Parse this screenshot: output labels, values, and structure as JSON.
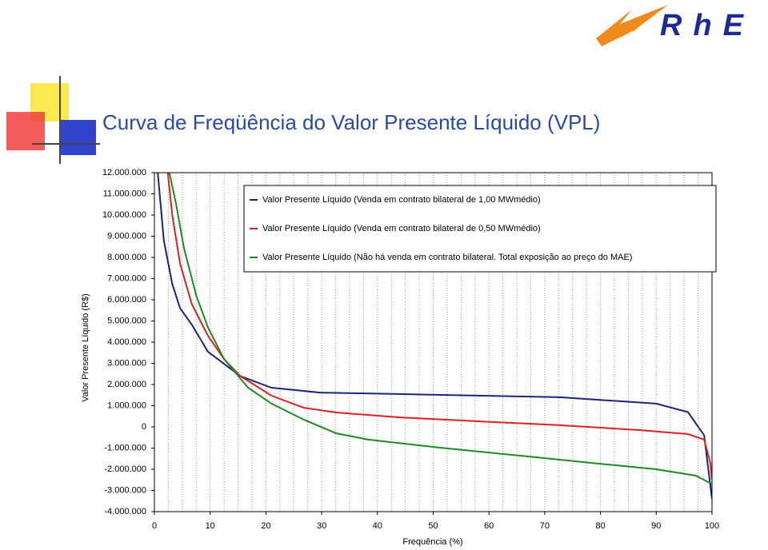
{
  "logo": "RhE",
  "chart_data": {
    "type": "line",
    "title": "Curva de Freqüência do Valor Presente Líquido (VPL)",
    "x_label": "Frequência (%)",
    "y_label": "Valor Presente Líquido (R$)",
    "xlim": [
      0,
      100
    ],
    "xticks": [
      0,
      10,
      20,
      30,
      40,
      50,
      60,
      70,
      80,
      90,
      100
    ],
    "ylim": [
      -4000000,
      12000000
    ],
    "yticks": [
      {
        "value": -4000000,
        "label": "-4.000.000"
      },
      {
        "value": -3000000,
        "label": "-3.000.000"
      },
      {
        "value": -2000000,
        "label": "-2.000.000"
      },
      {
        "value": -1000000,
        "label": "-1.000.000"
      },
      0,
      {
        "value": 1000000,
        "label": "1.000.000"
      },
      {
        "value": 2000000,
        "label": "2.000.000"
      },
      {
        "value": 3000000,
        "label": "3.000.000"
      },
      {
        "value": 4000000,
        "label": "4.000.000"
      },
      {
        "value": 5000000,
        "label": "5.000.000"
      },
      {
        "value": 6000000,
        "label": "6.000.000"
      },
      {
        "value": 7000000,
        "label": "7.000.000"
      },
      {
        "value": 8000000,
        "label": "8.000.000"
      },
      {
        "value": 9000000,
        "label": "9.000.000"
      },
      {
        "value": 10000000,
        "label": "10.000.000"
      },
      {
        "value": 11000000,
        "label": "11.000.000"
      },
      {
        "value": 12000000,
        "label": "12.000.000"
      }
    ],
    "grid": true,
    "series": [
      {
        "name": "Valor Presente Líquido (Venda em contrato bilateral de 1,00 MWmédio)",
        "color": "#1a237e",
        "x": [
          0.6,
          1.7,
          3.2,
          4.6,
          6.7,
          9.6,
          15.4,
          21,
          29.7,
          44,
          72.7,
          90,
          95.7,
          98.6,
          100
        ],
        "values": [
          12000000,
          8800000,
          6750000,
          5600000,
          4830000,
          3550000,
          2400000,
          1850000,
          1620000,
          1550000,
          1400000,
          1100000,
          700000,
          -400000,
          -3400000
        ]
      },
      {
        "name": "Valor Presente Líquido (Venda em contrato bilateral de 0,50 MWmédio)",
        "color": "#e02020",
        "x": [
          2.4,
          3.2,
          4.6,
          6.7,
          9.6,
          12.5,
          15.4,
          21,
          26.8,
          32.6,
          44,
          58.4,
          72.7,
          87,
          95.7,
          98.6,
          99.7,
          100
        ],
        "values": [
          12000000,
          10000000,
          7700000,
          5800000,
          4300000,
          3200000,
          2400000,
          1470000,
          900000,
          680000,
          450000,
          260000,
          80000,
          -150000,
          -340000,
          -600000,
          -1700000,
          -2500000
        ]
      },
      {
        "name": "Valor Presente Líquido (Não há venda em contrato bilateral. Total exposição ao preço do MAE)",
        "color": "#1f8a1f",
        "x": [
          2.7,
          3.9,
          5.3,
          7.5,
          9.6,
          12.5,
          16.8,
          21,
          26.8,
          32.6,
          38.3,
          51.2,
          65.6,
          79.9,
          90,
          97.1,
          100
        ],
        "values": [
          12000000,
          10500000,
          8450000,
          6200000,
          4700000,
          3200000,
          1850000,
          1100000,
          340000,
          -300000,
          -600000,
          -980000,
          -1360000,
          -1740000,
          -2000000,
          -2300000,
          -2700000
        ]
      }
    ]
  }
}
